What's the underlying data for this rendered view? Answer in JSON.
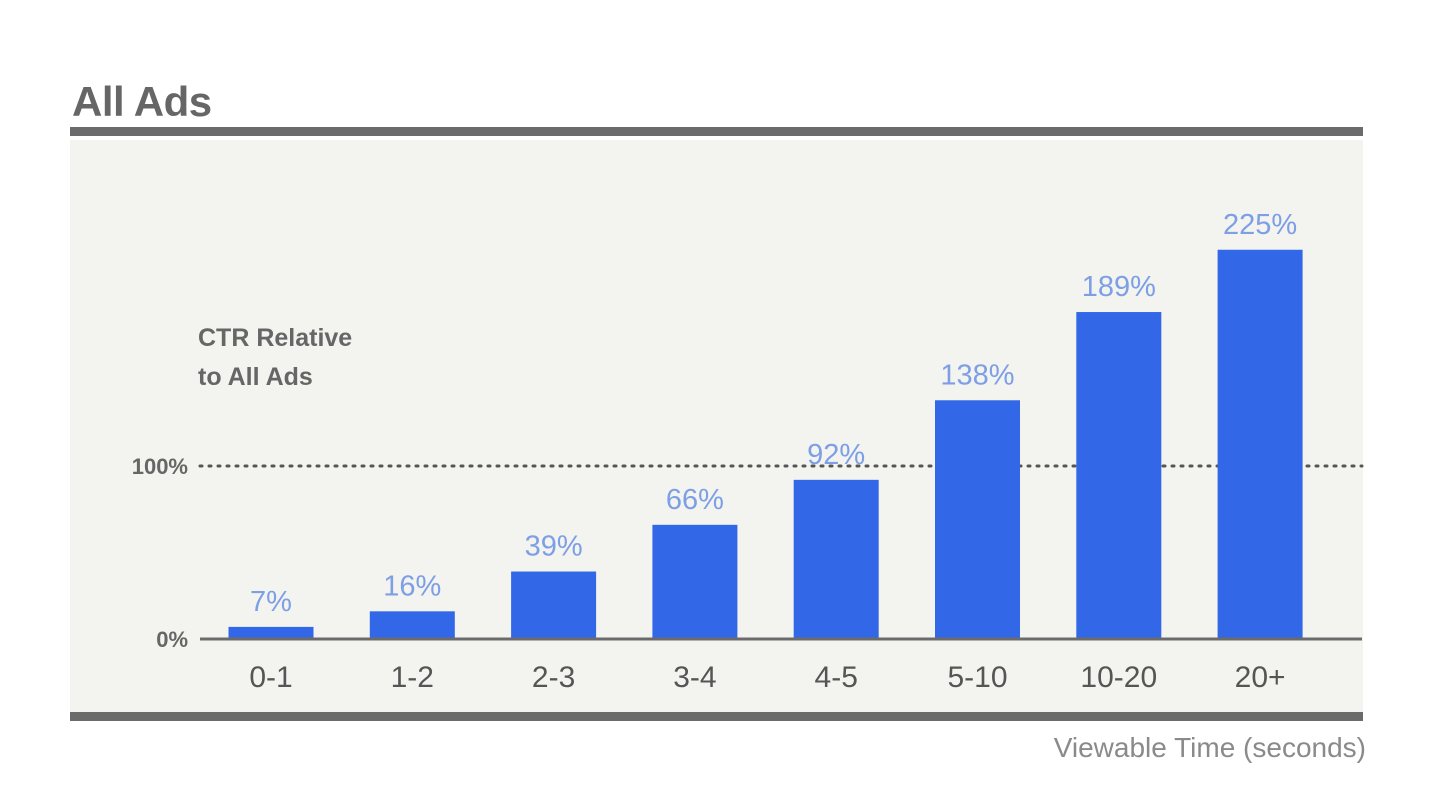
{
  "header": {
    "title": "All Ads"
  },
  "footer": {
    "caption": "Viewable Time (seconds)"
  },
  "colors": {
    "bar": "#3268e8",
    "data_label": "#7d9fe6",
    "rule": "#6b6b6b",
    "panel": "#f3f3ef"
  },
  "chart_data": {
    "type": "bar",
    "title": "All Ads",
    "ylabel_lines": [
      "CTR Relative",
      "to All Ads"
    ],
    "xlabel": "Viewable Time (seconds)",
    "categories": [
      "0-1",
      "1-2",
      "2-3",
      "3-4",
      "4-5",
      "5-10",
      "10-20",
      "20+"
    ],
    "values": [
      7,
      16,
      39,
      66,
      92,
      138,
      189,
      225
    ],
    "data_labels": [
      "7%",
      "16%",
      "39%",
      "66%",
      "92%",
      "138%",
      "189%",
      "225%"
    ],
    "y_ticks": [
      {
        "value": 0,
        "label": "0%"
      },
      {
        "value": 100,
        "label": "100%"
      }
    ],
    "reference_line": {
      "value": 100,
      "style": "dotted"
    },
    "ylim": [
      0,
      240
    ],
    "grid": false,
    "legend": "none"
  }
}
